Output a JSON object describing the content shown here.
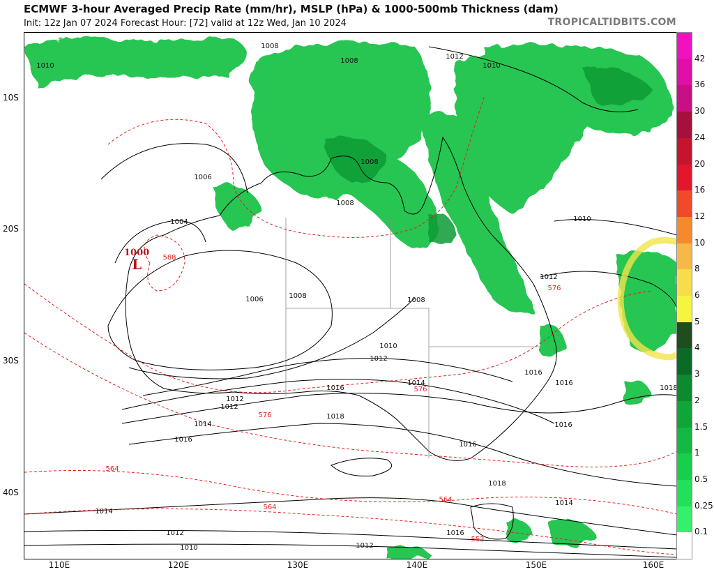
{
  "header": {
    "title": "ECMWF 3-hour Averaged Precip Rate (mm/hr), MSLP (hPa) & 1000-500mb Thickness (dam)",
    "subtitle": "Init: 12z Jan 07 2024   Forecast Hour: [72]   valid at 12z Wed, Jan 10 2024",
    "brand": "TROPICALTIDBITS.COM"
  },
  "map": {
    "region": "Australia",
    "lat_labels": [
      "10S",
      "20S",
      "30S",
      "40S"
    ],
    "lon_labels": [
      "110E",
      "120E",
      "130E",
      "140E",
      "150E",
      "160E"
    ],
    "low": {
      "pressure": "1000",
      "letter": "L"
    },
    "isobar_labels": [
      "1010",
      "1008",
      "1012",
      "1010",
      "1006",
      "1004",
      "1008",
      "1008",
      "1008",
      "1006",
      "1008",
      "1008",
      "1010",
      "1012",
      "1012",
      "1010",
      "1012",
      "1014",
      "1016",
      "1016",
      "1018",
      "1014",
      "1016",
      "1018",
      "1016",
      "1016",
      "1016",
      "1018",
      "1014",
      "1016",
      "1012",
      "1010",
      "1012",
      "1014",
      "1012",
      "1010",
      "1008",
      "1010",
      "1014"
    ],
    "thickness_labels": [
      "588",
      "576",
      "576",
      "576",
      "564",
      "564",
      "564",
      "552"
    ],
    "colors": {
      "isobar": "#000000",
      "thickness": "#e0201b",
      "precip_green": "#1ec24a",
      "precip_dark_green": "#0a9b34",
      "low": "#b5161b",
      "highlight": "#f2e34a"
    }
  },
  "colorbar": {
    "labels": [
      "42",
      "36",
      "30",
      "24",
      "20",
      "16",
      "12",
      "10",
      "8",
      "6",
      "5",
      "4",
      "3",
      "2",
      "1.5",
      "1",
      "0.5",
      "0.25",
      "0.1"
    ],
    "colors": [
      "#f012be",
      "#e00fa8",
      "#c80f86",
      "#a5103f",
      "#c5142d",
      "#e2162c",
      "#f04a2a",
      "#f58a2c",
      "#f7b84a",
      "#f8dd4a",
      "#f5f53f",
      "#1f4d1f",
      "#0a6b26",
      "#0d8a30",
      "#10a539",
      "#13b943",
      "#18cf4d",
      "#22e05a",
      "#34f06a",
      "#ffffff"
    ]
  }
}
